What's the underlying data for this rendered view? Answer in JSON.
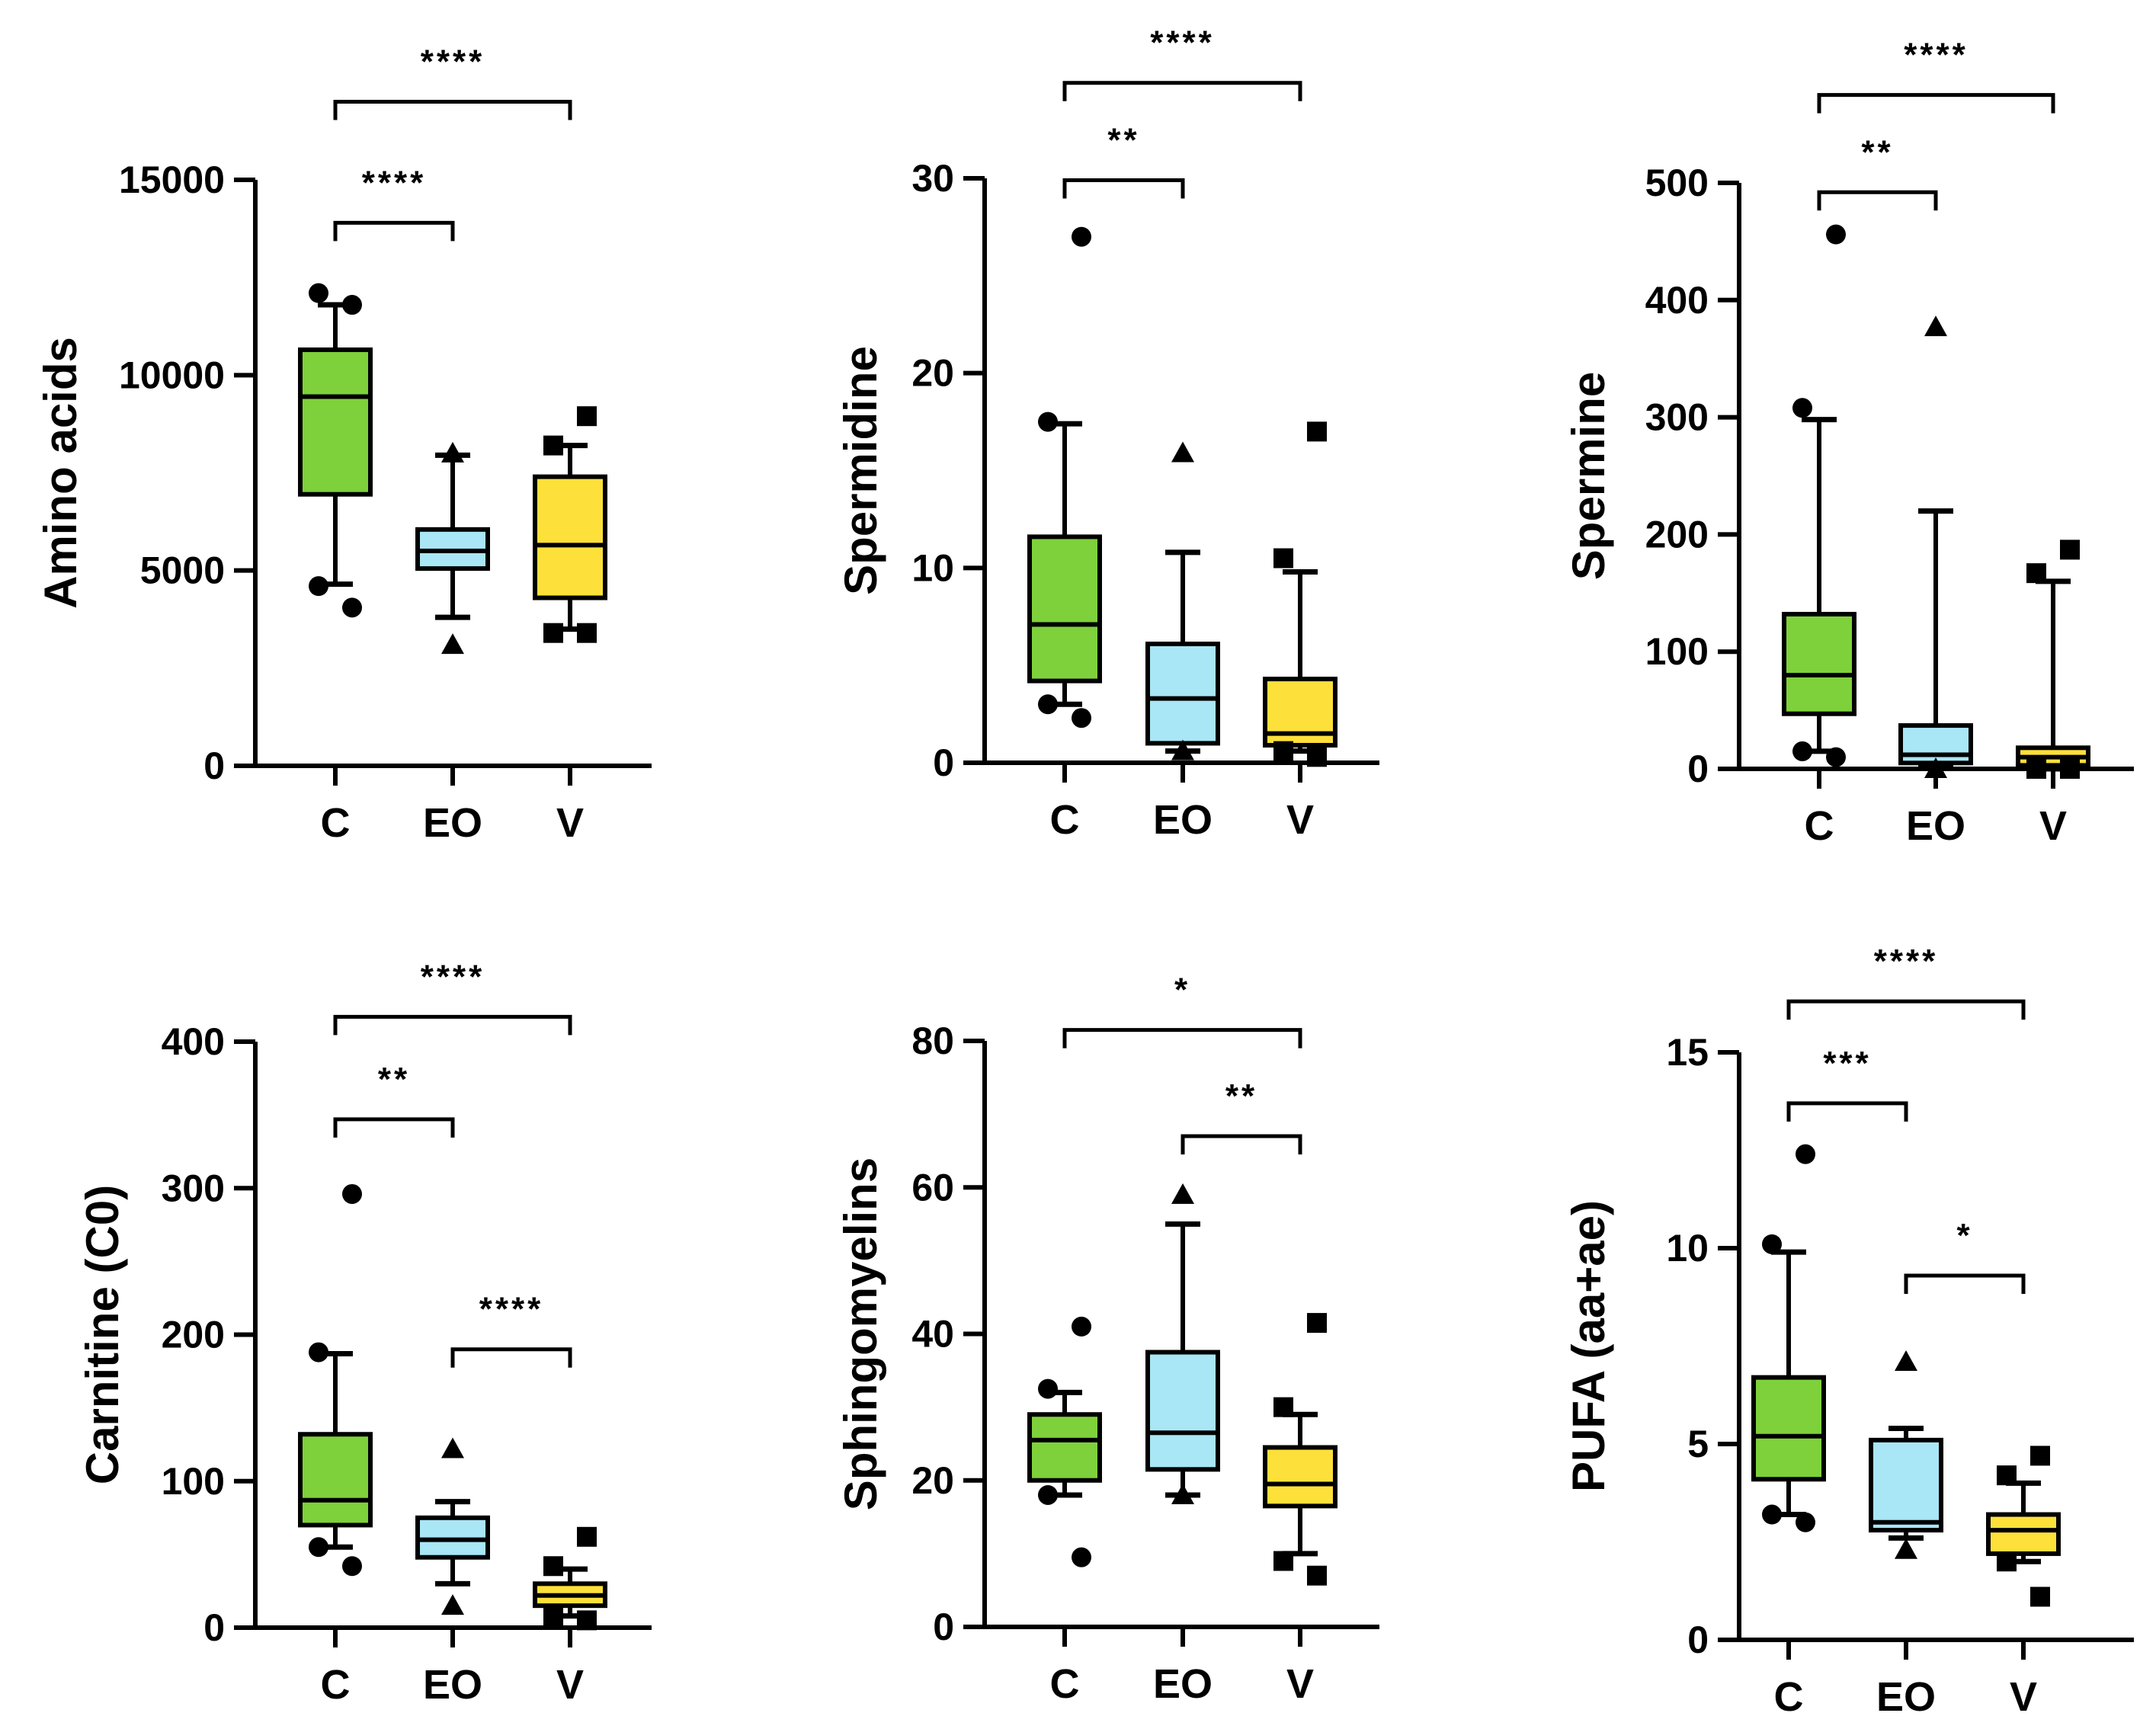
{
  "colors": {
    "C": "#7ed13a",
    "EO": "#a9e6f6",
    "V": "#fde03a",
    "line": "#000000"
  },
  "chart_data": [
    {
      "type": "box",
      "ylabel": "Amino acids",
      "ylim": [
        0,
        15000
      ],
      "yticks": [
        0,
        5000,
        10000,
        15000
      ],
      "categories": [
        "C",
        "EO",
        "V"
      ],
      "series": [
        {
          "name": "C",
          "marker": "circle",
          "q1": 6950,
          "median": 9450,
          "q3": 10650,
          "whisker_low": 4650,
          "whisker_high": 11800,
          "outliers": [
            4600,
            4050,
            12100,
            11800
          ]
        },
        {
          "name": "EO",
          "marker": "triangle",
          "q1": 5050,
          "median": 5500,
          "q3": 6050,
          "whisker_low": 3800,
          "whisker_high": 7950,
          "outliers": [
            3100,
            8000
          ]
        },
        {
          "name": "V",
          "marker": "square",
          "q1": 4300,
          "median": 5650,
          "q3": 7400,
          "whisker_low": 3500,
          "whisker_high": 8200,
          "outliers": [
            3400,
            3400,
            8200,
            8950
          ]
        }
      ],
      "significance": [
        {
          "from": "C",
          "to": "EO",
          "label": "****",
          "level": 13900
        },
        {
          "from": "C",
          "to": "V",
          "label": "****",
          "level": 17000
        }
      ]
    },
    {
      "type": "box",
      "ylabel": "Spermidine",
      "ylim": [
        0,
        30
      ],
      "yticks": [
        0,
        10,
        20,
        30
      ],
      "categories": [
        "C",
        "EO",
        "V"
      ],
      "series": [
        {
          "name": "C",
          "marker": "circle",
          "q1": 4.2,
          "median": 7.1,
          "q3": 11.6,
          "whisker_low": 3.0,
          "whisker_high": 17.4,
          "outliers": [
            3.0,
            2.3,
            17.5,
            27.0
          ]
        },
        {
          "name": "EO",
          "marker": "triangle",
          "q1": 1.0,
          "median": 3.3,
          "q3": 6.1,
          "whisker_low": 0.6,
          "whisker_high": 10.8,
          "outliers": [
            0.6,
            15.9
          ]
        },
        {
          "name": "V",
          "marker": "square",
          "q1": 0.9,
          "median": 1.5,
          "q3": 4.3,
          "whisker_low": 0.6,
          "whisker_high": 9.8,
          "outliers": [
            0.6,
            0.3,
            10.5,
            17.0
          ]
        }
      ],
      "significance": [
        {
          "from": "C",
          "to": "EO",
          "label": "**",
          "level": 29.9
        },
        {
          "from": "C",
          "to": "V",
          "label": "****",
          "level": 34.9
        }
      ]
    },
    {
      "type": "box",
      "ylabel": "Spermine",
      "ylim": [
        0,
        500
      ],
      "yticks": [
        0,
        100,
        200,
        300,
        400,
        500
      ],
      "categories": [
        "C",
        "EO",
        "V"
      ],
      "series": [
        {
          "name": "C",
          "marker": "circle",
          "q1": 47,
          "median": 80,
          "q3": 132,
          "whisker_low": 15,
          "whisker_high": 298,
          "outliers": [
            15,
            10,
            308,
            456
          ]
        },
        {
          "name": "EO",
          "marker": "triangle",
          "q1": 5,
          "median": 12,
          "q3": 37,
          "whisker_low": 2,
          "whisker_high": 220,
          "outliers": [
            0,
            377
          ]
        },
        {
          "name": "V",
          "marker": "square",
          "q1": 3,
          "median": 10,
          "q3": 18,
          "whisker_low": 0,
          "whisker_high": 160,
          "outliers": [
            0,
            0,
            167,
            187
          ]
        }
      ],
      "significance": [
        {
          "from": "C",
          "to": "EO",
          "label": "**",
          "level": 492
        },
        {
          "from": "C",
          "to": "V",
          "label": "****",
          "level": 575
        }
      ]
    },
    {
      "type": "box",
      "ylabel": "Carnitine (C0)",
      "ylim": [
        0,
        400
      ],
      "yticks": [
        0,
        100,
        200,
        300,
        400
      ],
      "categories": [
        "C",
        "EO",
        "V"
      ],
      "series": [
        {
          "name": "C",
          "marker": "circle",
          "q1": 70,
          "median": 87,
          "q3": 132,
          "whisker_low": 55,
          "whisker_high": 187,
          "outliers": [
            55,
            42,
            188,
            296
          ]
        },
        {
          "name": "EO",
          "marker": "triangle",
          "q1": 48,
          "median": 60,
          "q3": 75,
          "whisker_low": 30,
          "whisker_high": 86,
          "outliers": [
            15,
            122
          ]
        },
        {
          "name": "V",
          "marker": "square",
          "q1": 15,
          "median": 22,
          "q3": 30,
          "whisker_low": 8,
          "whisker_high": 40,
          "outliers": [
            8,
            5,
            42,
            62
          ]
        }
      ],
      "significance": [
        {
          "from": "EO",
          "to": "V",
          "label": "****",
          "level": 190
        },
        {
          "from": "C",
          "to": "EO",
          "label": "**",
          "level": 347
        },
        {
          "from": "C",
          "to": "V",
          "label": "****",
          "level": 417
        }
      ]
    },
    {
      "type": "box",
      "ylabel": "Sphingomyelins",
      "ylim": [
        0,
        80
      ],
      "yticks": [
        0,
        20,
        40,
        60,
        80
      ],
      "categories": [
        "C",
        "EO",
        "V"
      ],
      "series": [
        {
          "name": "C",
          "marker": "circle",
          "q1": 20,
          "median": 25.5,
          "q3": 29,
          "whisker_low": 18,
          "whisker_high": 32,
          "outliers": [
            18,
            9.5,
            32.5,
            41
          ]
        },
        {
          "name": "EO",
          "marker": "triangle",
          "q1": 21.5,
          "median": 26.5,
          "q3": 37.5,
          "whisker_low": 18,
          "whisker_high": 55,
          "outliers": [
            18,
            59
          ]
        },
        {
          "name": "V",
          "marker": "square",
          "q1": 16.5,
          "median": 19.5,
          "q3": 24.5,
          "whisker_low": 10,
          "whisker_high": 29,
          "outliers": [
            9,
            7,
            30,
            41.5
          ]
        }
      ],
      "significance": [
        {
          "from": "EO",
          "to": "V",
          "label": "**",
          "level": 67
        },
        {
          "from": "C",
          "to": "V",
          "label": "*",
          "level": 81.5
        }
      ]
    },
    {
      "type": "box",
      "ylabel": "PUFA (aa+ae)",
      "ylim": [
        0,
        15
      ],
      "yticks": [
        0,
        5,
        10,
        15
      ],
      "categories": [
        "C",
        "EO",
        "V"
      ],
      "series": [
        {
          "name": "C",
          "marker": "circle",
          "q1": 4.1,
          "median": 5.2,
          "q3": 6.7,
          "whisker_low": 3.2,
          "whisker_high": 9.9,
          "outliers": [
            3.2,
            3.0,
            10.1,
            12.4
          ]
        },
        {
          "name": "EO",
          "marker": "triangle",
          "q1": 2.8,
          "median": 3.0,
          "q3": 5.1,
          "whisker_low": 2.6,
          "whisker_high": 5.4,
          "outliers": [
            2.3,
            7.1
          ]
        },
        {
          "name": "V",
          "marker": "square",
          "q1": 2.2,
          "median": 2.8,
          "q3": 3.2,
          "whisker_low": 2.0,
          "whisker_high": 4.0,
          "outliers": [
            2.0,
            1.1,
            4.2,
            4.7
          ]
        }
      ],
      "significance": [
        {
          "from": "EO",
          "to": "V",
          "label": "*",
          "level": 9.3
        },
        {
          "from": "C",
          "to": "EO",
          "label": "***",
          "level": 13.7
        },
        {
          "from": "C",
          "to": "V",
          "label": "****",
          "level": 16.3
        }
      ]
    }
  ]
}
